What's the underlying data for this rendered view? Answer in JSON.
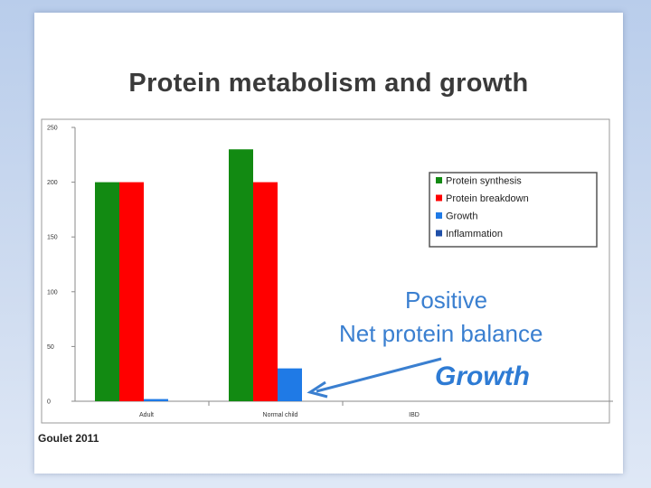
{
  "slide": {
    "title": "Protein metabolism and growth",
    "source": "Goulet 2011"
  },
  "colors": {
    "protein_synthesis": "#128a12",
    "protein_breakdown": "#ff0000",
    "growth": "#1f7ae6",
    "inflammation": "#1f4fa8",
    "annotation": "#3a7fd0"
  },
  "annotation": {
    "line1": "Positive",
    "line2": "Net protein balance",
    "arrow_label": "Growth"
  },
  "chart_data": {
    "type": "bar",
    "categories": [
      "Adult",
      "Normal child",
      "IBD"
    ],
    "series": [
      {
        "name": "Protein synthesis",
        "values": [
          200,
          230,
          0
        ]
      },
      {
        "name": "Protein breakdown",
        "values": [
          200,
          200,
          0
        ]
      },
      {
        "name": "Growth",
        "values": [
          2,
          30,
          0
        ]
      },
      {
        "name": "Inflammation",
        "values": [
          0,
          0,
          0
        ]
      }
    ],
    "yticks": [
      0,
      50,
      100,
      150,
      200,
      250
    ],
    "ylim": [
      0,
      250
    ],
    "title": "",
    "xlabel": "",
    "ylabel": "",
    "legend": "right",
    "grid": false
  }
}
